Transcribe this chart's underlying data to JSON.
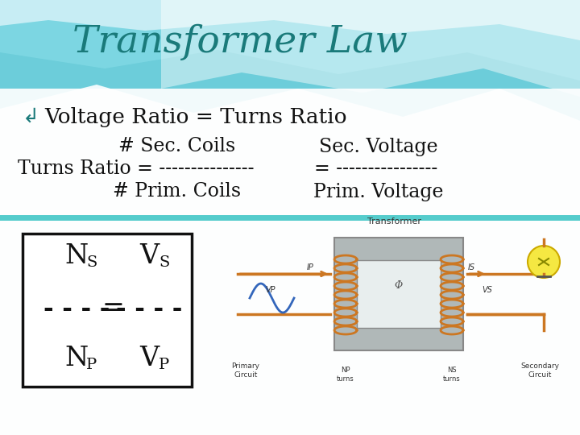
{
  "title": "Transformer Law",
  "title_color": "#1a7a7a",
  "title_fontsize": 34,
  "bullet_symbol": "↲",
  "bullet_color": "#1a7a7a",
  "bullet_text": "Voltage Ratio = Turns Ratio",
  "line1_left": "# Sec. Coils",
  "line1_right": "Sec. Voltage",
  "line2_left": "Turns Ratio = ---------------",
  "line2_eq": "=",
  "line2_right": "----------------",
  "line3_left": "# Prim. Coils",
  "line3_right": "Prim. Voltage",
  "divider_color": "#55cccc",
  "box_edge_color": "#111111",
  "text_color": "#111111",
  "main_fontsize": 17,
  "formula_fontsize": 24,
  "formula_sub_fontsize": 14,
  "bg_color": "#f0fafc",
  "wave_color1": "#55c5d5",
  "wave_color2": "#88dde8",
  "wave_color3": "#bbeff5",
  "wave_white": "#e8f8fc",
  "content_bg": "#f2fafc"
}
